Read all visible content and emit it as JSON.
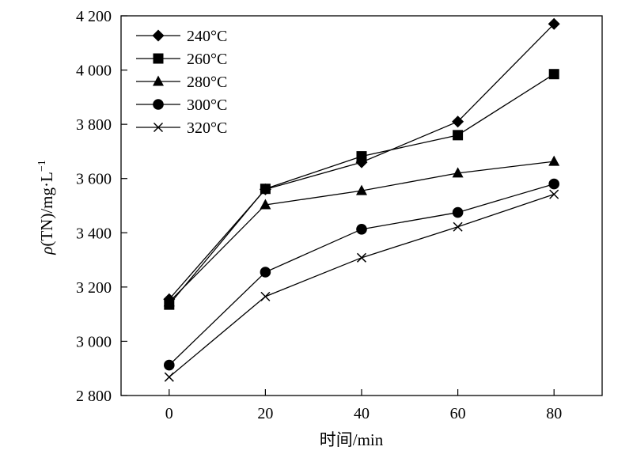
{
  "chart_data": {
    "type": "line",
    "title": "",
    "xlabel": "时间/min",
    "ylabel_rho": "ρ",
    "ylabel_rest": "(TN)/mg·L",
    "ylabel_sup": "−1",
    "x": [
      0,
      20,
      40,
      60,
      80
    ],
    "xlim": [
      -10,
      90
    ],
    "ylim": [
      2800,
      4200
    ],
    "xticks": [
      0,
      20,
      40,
      60,
      80
    ],
    "xtick_labels": [
      "0",
      "20",
      "40",
      "60",
      "80"
    ],
    "yticks": [
      2800,
      3000,
      3200,
      3400,
      3600,
      3800,
      4000,
      4200
    ],
    "ytick_labels": [
      "2 800",
      "3 000",
      "3 200",
      "3 400",
      "3 600",
      "3 800",
      "4 000",
      "4 200"
    ],
    "legend_position": "top-left",
    "grid": false,
    "series": [
      {
        "name": "240°C",
        "marker": "diamond",
        "values": [
          3155,
          3560,
          3660,
          3810,
          4170
        ]
      },
      {
        "name": "260°C",
        "marker": "square",
        "values": [
          3135,
          3562,
          3682,
          3760,
          3985
        ]
      },
      {
        "name": "280°C",
        "marker": "triangle",
        "values": [
          3145,
          3503,
          3555,
          3620,
          3663
        ]
      },
      {
        "name": "300°C",
        "marker": "circle",
        "values": [
          2912,
          3255,
          3413,
          3475,
          3580
        ]
      },
      {
        "name": "320°C",
        "marker": "x",
        "values": [
          2868,
          3165,
          3308,
          3422,
          3542
        ]
      }
    ]
  }
}
